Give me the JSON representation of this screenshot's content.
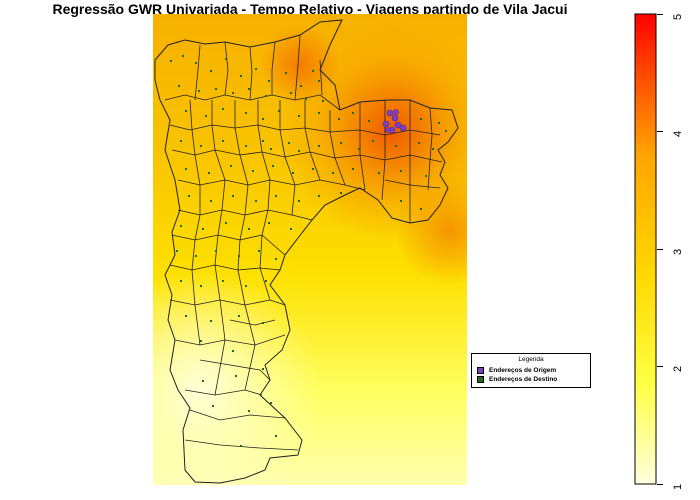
{
  "title": "Regressão GWR Univariada - Tempo Relativo - Viagens partindo de Vila Jacui",
  "legend": {
    "title": "Legenda",
    "items": [
      {
        "label": "Endereços de Origem",
        "color": "#7b3fbf"
      },
      {
        "label": "Endereços de Destino",
        "color": "#1e6b1e"
      }
    ]
  },
  "colorbar": {
    "min": 1,
    "max": 5,
    "ticks": [
      "1",
      "2",
      "3",
      "4",
      "5"
    ],
    "colors": [
      "#ffffe0",
      "#ffff40",
      "#ffd700",
      "#ffa500",
      "#ff4500",
      "#ff0000"
    ]
  }
}
